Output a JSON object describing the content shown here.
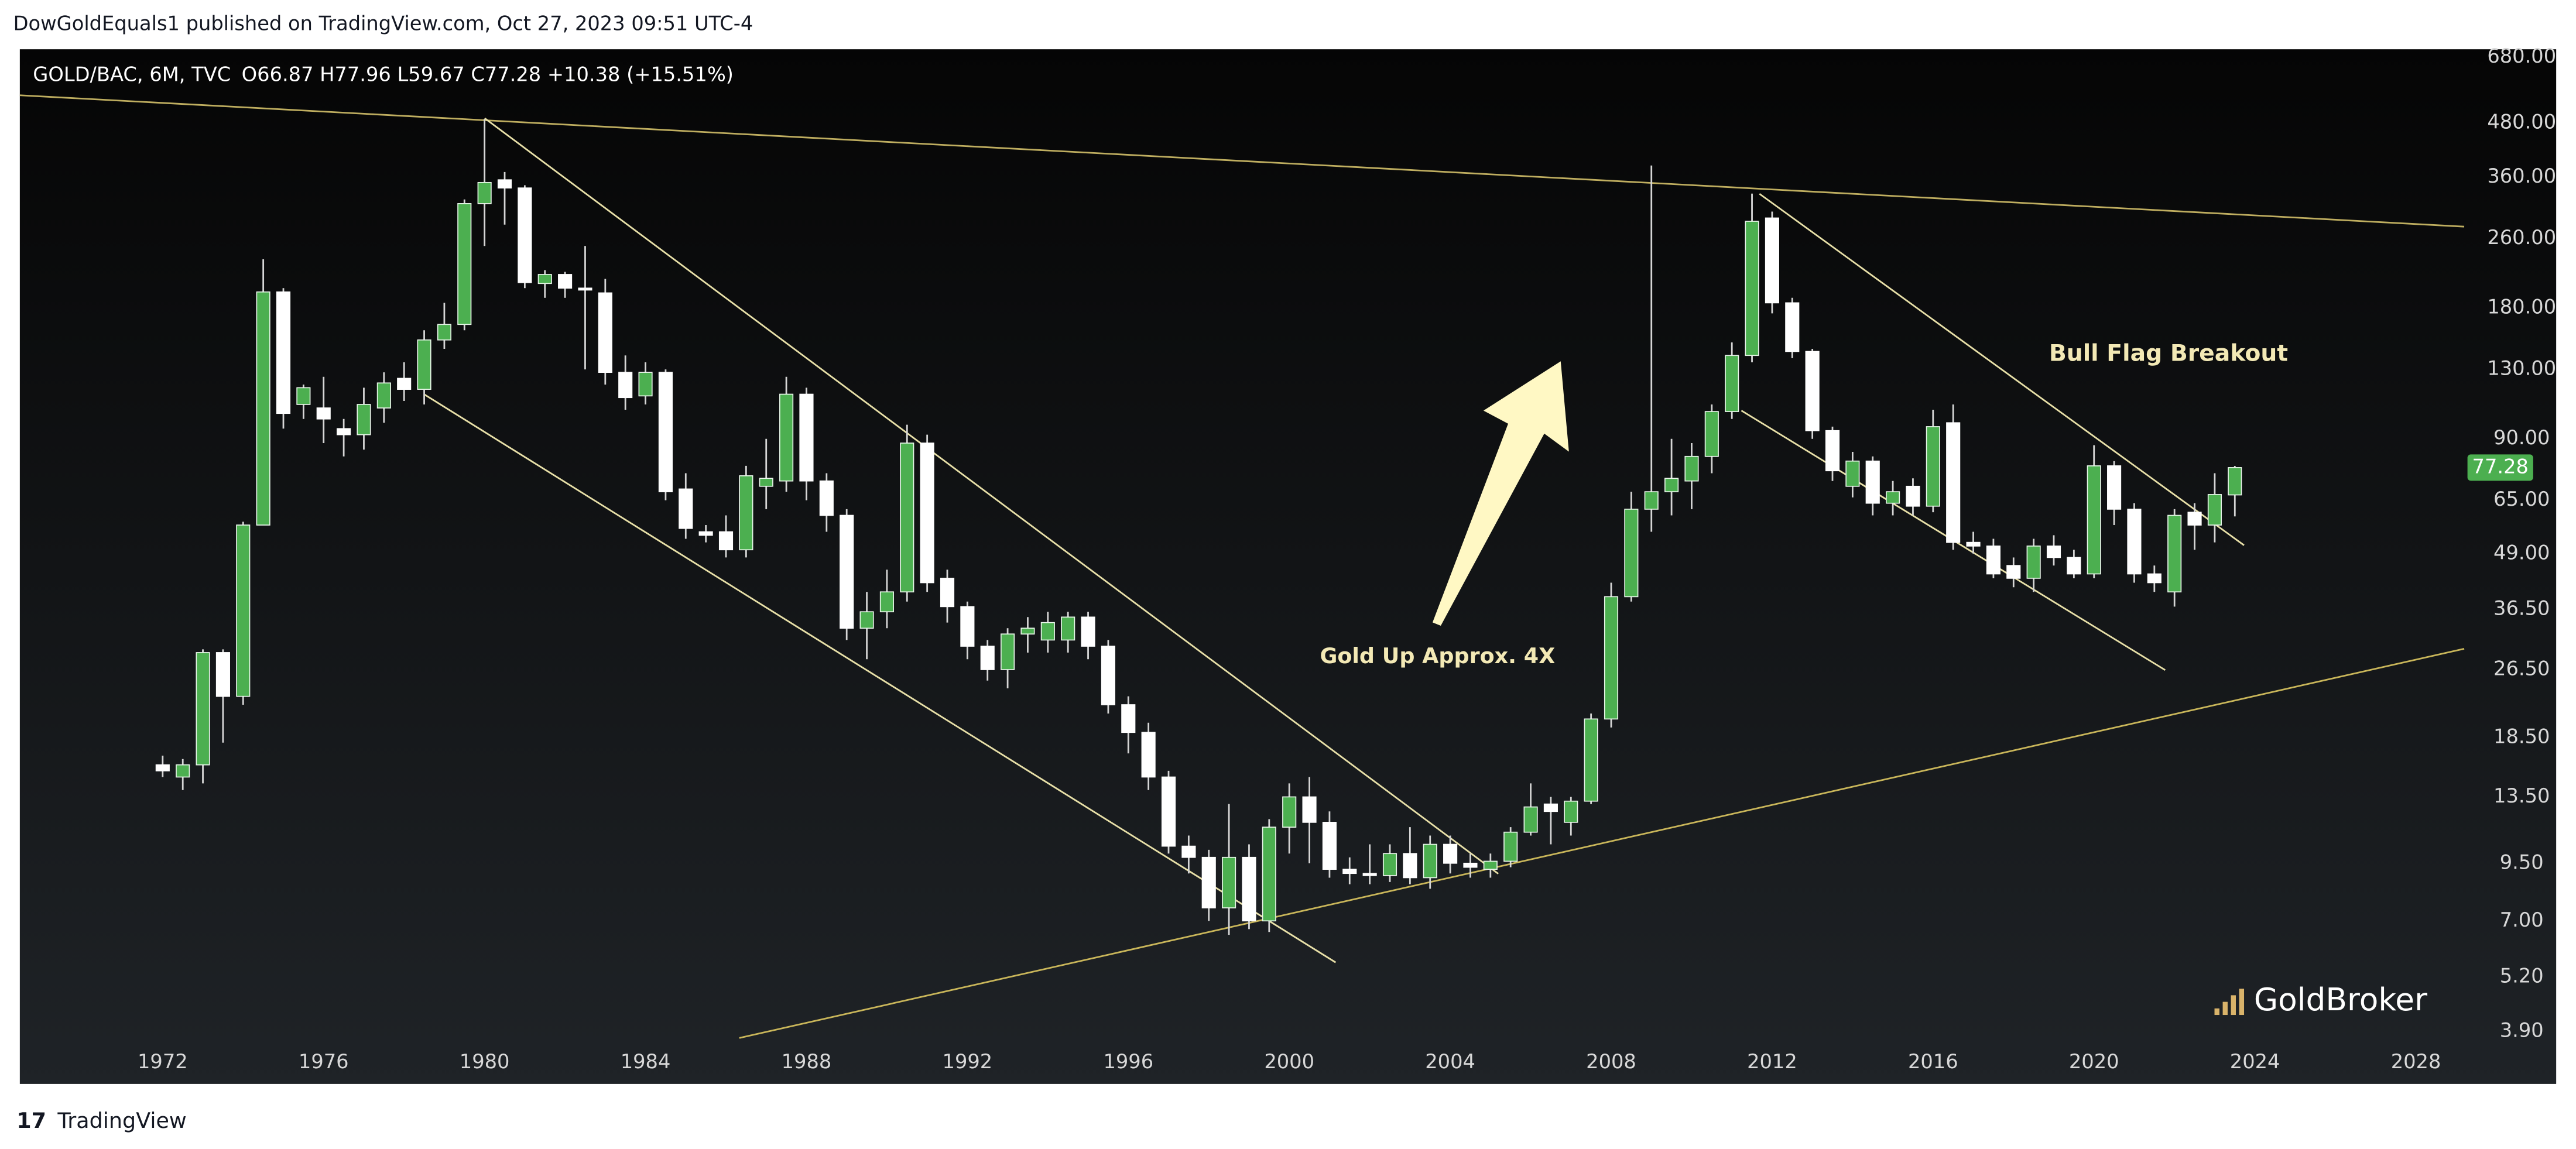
{
  "chart_data": {
    "type": "candlestick",
    "header": "DowGoldEquals1 published on TradingView.com, Oct 27, 2023 09:51 UTC-4",
    "symbol": "GOLD/BAC, 6M, TVC",
    "legend_values": "O66.87 H77.96 L59.67 C77.28 +10.38 (+15.51%)",
    "annotations": [
      "Gold Up Approx. 4X",
      "Bull Flag Breakout"
    ],
    "watermark": "GoldBroker",
    "footer": "TradingView",
    "log_scale": true,
    "grid": false,
    "up_color": "#4caf50",
    "down_color": "#ffffff",
    "last_price": 77.28,
    "last_price_color": "#4caf50",
    "xlim": [
      1968.45,
      2029.2
    ],
    "xticks": [
      1972,
      1976,
      1980,
      1984,
      1988,
      1992,
      1996,
      2000,
      2004,
      2008,
      2012,
      2016,
      2020,
      2024,
      2028
    ],
    "ylim": [
      2.95,
      709
    ],
    "yticks": [
      {
        "value": 680,
        "label": "680.00"
      },
      {
        "value": 480,
        "label": "480.00"
      },
      {
        "value": 360,
        "label": "360.00"
      },
      {
        "value": 260,
        "label": "260.00"
      },
      {
        "value": 180,
        "label": "180.00"
      },
      {
        "value": 130,
        "label": "130.00"
      },
      {
        "value": 90,
        "label": "90.00"
      },
      {
        "value": 65,
        "label": "65.00"
      },
      {
        "value": 49,
        "label": "49.00"
      },
      {
        "value": 36.5,
        "label": "36.50"
      },
      {
        "value": 26.5,
        "label": "26.50"
      },
      {
        "value": 18.5,
        "label": "18.50"
      },
      {
        "value": 13.5,
        "label": "13.50"
      },
      {
        "value": 9.5,
        "label": "9.50"
      },
      {
        "value": 7,
        "label": "7.00"
      },
      {
        "value": 5.2,
        "label": "5.20"
      },
      {
        "value": 3.9,
        "label": "3.90"
      }
    ],
    "x": [
      1972,
      1972.5,
      1973,
      1973.5,
      1974,
      1974.5,
      1975,
      1975.5,
      1976,
      1976.5,
      1977,
      1977.5,
      1978,
      1978.5,
      1979,
      1979.5,
      1980,
      1980.5,
      1981,
      1981.5,
      1982,
      1982.5,
      1983,
      1983.5,
      1984,
      1984.5,
      1985,
      1985.5,
      1986,
      1986.5,
      1987,
      1987.5,
      1988,
      1988.5,
      1989,
      1989.5,
      1990,
      1990.5,
      1991,
      1991.5,
      1992,
      1992.5,
      1993,
      1993.5,
      1994,
      1994.5,
      1995,
      1995.5,
      1996,
      1996.5,
      1997,
      1997.5,
      1998,
      1998.5,
      1999,
      1999.5,
      2000,
      2000.5,
      2001,
      2001.5,
      2002,
      2002.5,
      2003,
      2003.5,
      2004,
      2004.5,
      2005,
      2005.5,
      2006,
      2006.5,
      2007,
      2007.5,
      2008,
      2008.5,
      2009,
      2009.5,
      2010,
      2010.5,
      2011,
      2011.5,
      2012,
      2012.5,
      2013,
      2013.5,
      2014,
      2014.5,
      2015,
      2015.5,
      2016,
      2016.5,
      2017,
      2017.5,
      2018,
      2018.5,
      2019,
      2019.5,
      2020,
      2020.5,
      2021,
      2021.5,
      2022,
      2022.5,
      2023,
      2023.5
    ],
    "open": [
      16,
      15,
      16,
      29,
      23,
      57,
      196,
      108,
      106,
      95,
      92,
      106,
      124,
      117,
      152,
      165,
      313,
      355,
      340,
      205,
      215,
      200,
      195,
      128,
      113,
      128,
      69,
      55,
      55,
      50,
      70,
      72,
      114,
      72,
      60,
      33,
      36,
      40,
      88,
      43,
      37,
      30,
      26.5,
      32,
      31,
      31,
      35,
      30,
      22,
      19,
      15,
      10.4,
      9.8,
      7.5,
      9.8,
      7,
      11.5,
      13.5,
      11.8,
      9.2,
      9,
      8.9,
      10,
      8.8,
      10.5,
      9.5,
      9.2,
      9.6,
      11.2,
      13,
      11.8,
      13.2,
      20.4,
      39,
      62,
      68,
      72,
      82,
      104,
      140,
      290,
      185,
      143,
      94,
      70,
      80,
      64,
      70,
      63,
      98,
      52,
      51,
      46,
      43,
      51,
      48,
      44,
      78,
      62,
      44,
      40,
      61,
      57,
      66.87
    ],
    "high": [
      16.8,
      16.5,
      29.5,
      29.5,
      58,
      233,
      200,
      120,
      125,
      100,
      118,
      128,
      135,
      160,
      185,
      320,
      490,
      370,
      345,
      220,
      218,
      250,
      210,
      140,
      135,
      130,
      75,
      57,
      60,
      78,
      90,
      125,
      118,
      75,
      62,
      40,
      45,
      97,
      92,
      45,
      38,
      31,
      33,
      35,
      36,
      36,
      36,
      31,
      23,
      20,
      15.5,
      11,
      10.2,
      13,
      10.5,
      12,
      14.5,
      15,
      12.5,
      9.8,
      10.5,
      10.5,
      11.5,
      11,
      11,
      10,
      10,
      11.5,
      14.5,
      13.5,
      13.5,
      21,
      42,
      68,
      383,
      90,
      88,
      108,
      150,
      330,
      300,
      190,
      145,
      96,
      84,
      82,
      72,
      73,
      105,
      108,
      55,
      53,
      48,
      53,
      54,
      50,
      87,
      80,
      64,
      46,
      62,
      64,
      75,
      77.96
    ],
    "low": [
      15,
      14,
      14.5,
      18,
      22,
      57,
      95,
      100,
      88,
      82,
      85,
      98,
      110,
      108,
      145,
      160,
      250,
      280,
      200,
      190,
      190,
      130,
      120,
      105,
      108,
      65,
      53,
      52,
      48,
      48,
      62,
      68,
      65,
      55,
      31,
      28,
      33,
      38,
      40,
      34,
      28,
      25,
      24,
      29,
      29,
      29,
      28,
      21,
      17,
      14,
      10,
      9,
      7,
      6.5,
      6.7,
      6.6,
      10,
      9.5,
      8.8,
      8.5,
      8.5,
      8.6,
      8.5,
      8.3,
      9,
      8.8,
      8.8,
      9.3,
      11,
      10.5,
      11,
      13,
      19.5,
      38,
      55,
      60,
      62,
      75,
      100,
      135,
      175,
      138,
      90,
      72,
      66,
      60,
      60,
      60,
      61,
      50,
      49,
      43,
      41,
      40,
      46,
      43,
      43,
      57,
      42,
      40,
      37,
      50,
      52,
      59.67
    ],
    "close": [
      15.5,
      16,
      29,
      23,
      57,
      196,
      103,
      118,
      100,
      92,
      108,
      121,
      117,
      152,
      165,
      313,
      350,
      340,
      206,
      215,
      200,
      198,
      128,
      112,
      128,
      68,
      56,
      54,
      50,
      74,
      73,
      114,
      72,
      60,
      33,
      36,
      40,
      88,
      42,
      37,
      30,
      26.5,
      32,
      33,
      34,
      35,
      30,
      22,
      19,
      15,
      10.4,
      9.8,
      7.5,
      9.8,
      7,
      11.5,
      13.5,
      11.8,
      9.2,
      9,
      8.9,
      10,
      8.8,
      10.5,
      9.5,
      9.3,
      9.6,
      11.2,
      12.8,
      12.5,
      13.2,
      20.4,
      39,
      62,
      68,
      73,
      82,
      104,
      140,
      285,
      185,
      143,
      94,
      76,
      80,
      64,
      68,
      63,
      96,
      52,
      51,
      44,
      43,
      51,
      48,
      44,
      78,
      62,
      44,
      42,
      60,
      57,
      67,
      77.28
    ]
  }
}
